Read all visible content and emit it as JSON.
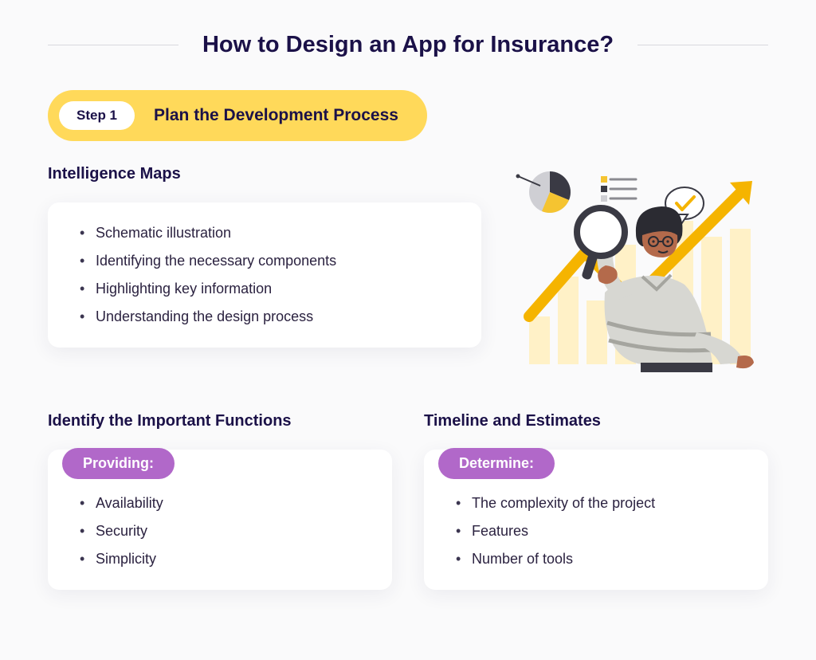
{
  "colors": {
    "title": "#1b1148",
    "heading": "#1b1148",
    "body_text": "#2b2240",
    "rule": "#d8d8de",
    "step_pill_bg": "#ffd95a",
    "step_chip_bg": "#ffffff",
    "step_chip_text": "#1b1148",
    "step_title_text": "#1b1148",
    "card_bg": "#ffffff",
    "purple_tag_bg": "#b168c9",
    "purple_tag_text": "#ffffff",
    "page_bg": "#fafafb"
  },
  "typography": {
    "title_fontsize": 29,
    "heading_fontsize": 20,
    "step_title_fontsize": 21,
    "step_chip_fontsize": 17,
    "list_fontsize": 18,
    "tag_fontsize": 18,
    "title_weight": 700,
    "heading_weight": 700
  },
  "title": "How to Design an App for Insurance?",
  "step": {
    "chip": "Step 1",
    "label": "Plan the Development Process"
  },
  "intelligence_maps": {
    "heading": "Intelligence Maps",
    "items": [
      "Schematic illustration",
      "Identifying the necessary components",
      "Highlighting key information",
      "Understanding the design process"
    ]
  },
  "functions": {
    "heading": "Identify the Important Functions",
    "tag": "Providing:",
    "items": [
      "Availability",
      "Security",
      "Simplicity"
    ]
  },
  "timeline": {
    "heading": "Timeline and Estimates",
    "tag": "Determine:",
    "items": [
      "The complexity of the project",
      "Features",
      "Number of tools"
    ]
  },
  "illustration": {
    "chart_bar_fill": "#fff1c7",
    "chart_line": "#f5b400",
    "arrow_stroke": "#f5b400",
    "pie_dark": "#3a3a44",
    "pie_yellow": "#f5c431",
    "pie_light": "#cfcfd4",
    "shirt": "#d7d7d2",
    "shirt_stripe": "#a5a59f",
    "pants": "#3a3a44",
    "skin": "#b46a4b",
    "hair": "#2b2b32",
    "glasses": "#2b2b32",
    "magnifier_ring": "#3a3a44",
    "magnifier_glass": "#ffffff",
    "bubble_bg": "#ffffff",
    "bubble_stroke": "#3a3a44",
    "check": "#f5b400",
    "legend_box1": "#f5c431",
    "legend_box2": "#3a3a44",
    "legend_box3": "#cfcfd4"
  }
}
